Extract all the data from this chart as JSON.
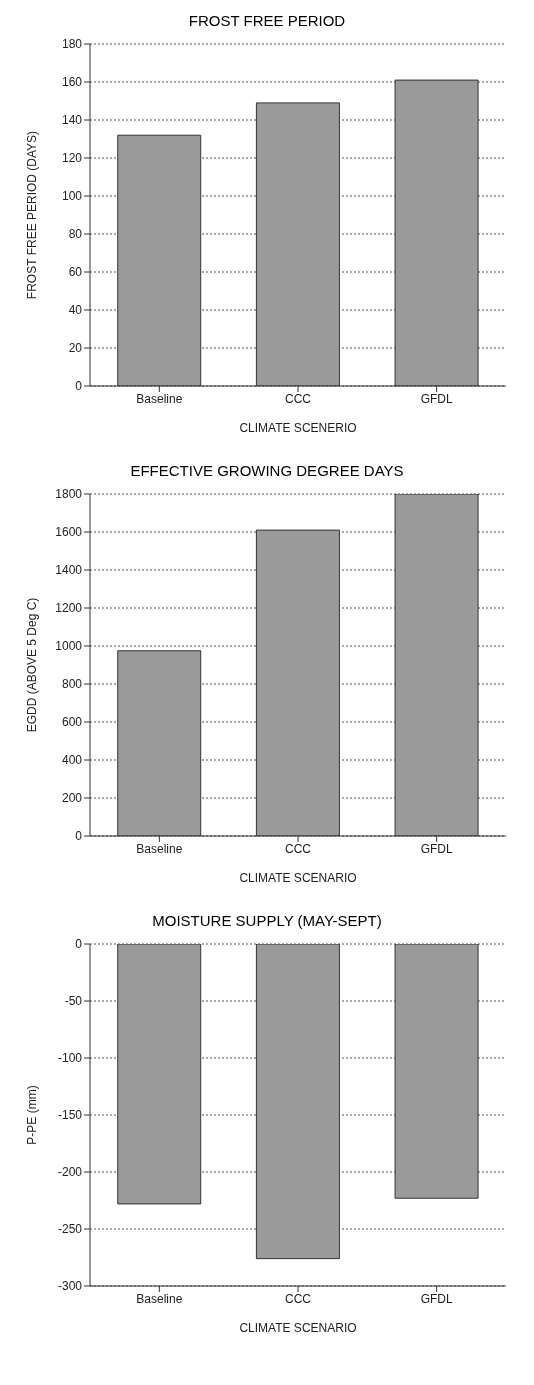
{
  "chart_data": [
    {
      "type": "bar",
      "title": "FROST FREE PERIOD",
      "xlabel": "CLIMATE SCENERIO",
      "ylabel": "FROST FREE PERIOD (DAYS)",
      "categories": [
        "Baseline",
        "CCC",
        "GFDL"
      ],
      "values": [
        132,
        149,
        161
      ],
      "color": "#9a9a9a",
      "ylim": [
        0,
        180
      ],
      "yticks": [
        0,
        20,
        40,
        60,
        80,
        100,
        120,
        140,
        160,
        180
      ],
      "grid": "y"
    },
    {
      "type": "bar",
      "title": "EFFECTIVE GROWING DEGREE DAYS",
      "xlabel": "CLIMATE SCENARIO",
      "ylabel": "EGDD (ABOVE 5 Deg C)",
      "categories": [
        "Baseline",
        "CCC",
        "GFDL"
      ],
      "values": [
        975,
        1610,
        1800
      ],
      "color": "#9a9a9a",
      "ylim": [
        0,
        1800
      ],
      "yticks": [
        0,
        200,
        400,
        600,
        800,
        1000,
        1200,
        1400,
        1600,
        1800
      ],
      "grid": "y"
    },
    {
      "type": "bar",
      "title": "MOISTURE SUPPLY (MAY-SEPT)",
      "xlabel": "CLIMATE SCENARIO",
      "ylabel": "P-PE (mm)",
      "categories": [
        "Baseline",
        "CCC",
        "GFDL"
      ],
      "values": [
        -228,
        -276,
        -223
      ],
      "color": "#9a9a9a",
      "ylim": [
        -300,
        0
      ],
      "yticks": [
        -300,
        -250,
        -200,
        -150,
        -100,
        -50,
        0
      ],
      "grid": "y"
    }
  ]
}
